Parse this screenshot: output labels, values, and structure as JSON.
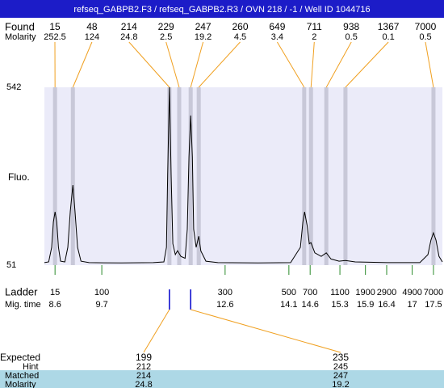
{
  "header": {
    "title": "refseq_GABPB2.F3 / refseq_GABPB2.R3 / OVN 218 / -1 / Well ID 1044716"
  },
  "found": {
    "label": "Found",
    "molarity_label": "Molarity",
    "peaks": [
      {
        "size": 15,
        "molarity": 252.5,
        "time": 8.6
      },
      {
        "size": 48,
        "molarity": 124,
        "time": 9.02
      },
      {
        "size": 214,
        "molarity": 24.8,
        "time": 11.29
      },
      {
        "size": 229,
        "molarity": 2.5,
        "time": 11.52
      },
      {
        "size": 247,
        "molarity": 19.2,
        "time": 11.79
      },
      {
        "size": 260,
        "molarity": 4.5,
        "time": 11.98
      },
      {
        "size": 649,
        "molarity": 3.4,
        "time": 14.46
      },
      {
        "size": 711,
        "molarity": 2,
        "time": 14.62
      },
      {
        "size": 938,
        "molarity": 0.5,
        "time": 14.98
      },
      {
        "size": 1367,
        "molarity": 0.1,
        "time": 15.43
      },
      {
        "size": 7000,
        "molarity": 0.5,
        "time": 17.5
      }
    ]
  },
  "chart_data": {
    "type": "line",
    "ylabel": "Fluo.",
    "ylim": [
      51,
      542
    ],
    "yticks": [
      51,
      542
    ],
    "xlim": [
      8.35,
      17.71
    ],
    "color": "#000000",
    "x": [
      8.35,
      8.45,
      8.52,
      8.56,
      8.6,
      8.64,
      8.68,
      8.73,
      8.83,
      8.9,
      8.96,
      9.02,
      9.07,
      9.13,
      9.21,
      9.4,
      10.16,
      10.91,
      11.16,
      11.22,
      11.25,
      11.29,
      11.33,
      11.37,
      11.43,
      11.48,
      11.56,
      11.66,
      11.71,
      11.75,
      11.79,
      11.83,
      11.86,
      11.92,
      11.98,
      12.03,
      12.15,
      12.43,
      13.38,
      14.14,
      14.37,
      14.43,
      14.47,
      14.53,
      14.58,
      14.62,
      14.71,
      14.86,
      14.98,
      15.09,
      15.28,
      15.43,
      15.66,
      16.42,
      17.18,
      17.37,
      17.44,
      17.5,
      17.56,
      17.63,
      17.71
    ],
    "values": [
      58,
      60,
      100,
      170,
      198,
      170,
      100,
      62,
      60,
      100,
      200,
      272,
      200,
      100,
      62,
      58,
      57,
      58,
      60,
      100,
      300,
      542,
      300,
      110,
      80,
      91,
      75,
      70,
      150,
      350,
      464,
      350,
      150,
      100,
      131,
      90,
      62,
      58,
      57,
      58,
      100,
      170,
      198,
      160,
      110,
      113,
      85,
      75,
      85,
      68,
      62,
      64,
      60,
      58,
      58,
      80,
      120,
      140,
      120,
      75,
      60
    ]
  },
  "ladder": {
    "label": "Ladder",
    "time_label": "Mig. time",
    "markers": [
      {
        "size": 15,
        "time": 8.6
      },
      {
        "size": 100,
        "time": 9.7
      },
      {
        "size": 300,
        "time": 12.6
      },
      {
        "size": 500,
        "time": 14.1
      },
      {
        "size": 700,
        "time": 14.6
      },
      {
        "size": 1100,
        "time": 15.3
      },
      {
        "size": 1900,
        "time": 15.9
      },
      {
        "size": 2900,
        "time": 16.4
      },
      {
        "size": 4900,
        "time": 17
      },
      {
        "size": 7000,
        "time": 17.5
      }
    ]
  },
  "expected": {
    "labels": [
      "Expected",
      "Hint",
      "Matched",
      "Molarity"
    ],
    "columns": [
      {
        "expected": 199,
        "hint": 212,
        "matched": 214,
        "molarity": 24.8,
        "time": 11.29
      },
      {
        "expected": 235,
        "hint": 245,
        "matched": 247,
        "molarity": 19.2,
        "time": 11.79
      }
    ]
  }
}
